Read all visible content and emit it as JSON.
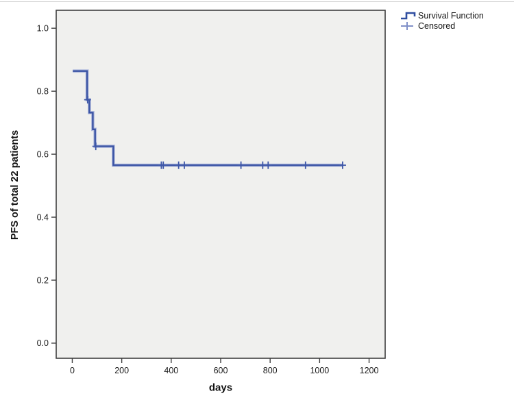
{
  "chart_data": {
    "type": "line",
    "subtype": "kaplan-meier-step",
    "title": "",
    "xlabel": "days",
    "ylabel": "PFS of total 22 patients",
    "xlim": [
      -65,
      1265
    ],
    "ylim": [
      -0.048,
      1.057
    ],
    "x_ticks": [
      0,
      200,
      400,
      600,
      800,
      1000,
      1200
    ],
    "x_tick_labels": [
      "0",
      "200",
      "400",
      "600",
      "800",
      "1000",
      "1200"
    ],
    "y_ticks": [
      0.0,
      0.2,
      0.4,
      0.6,
      0.8,
      1.0
    ],
    "y_tick_labels": [
      "0.0",
      "0.2",
      "0.4",
      "0.6",
      "0.8",
      "1.0"
    ],
    "grid": false,
    "plot_background": "#f0f0ee",
    "plot_border_color": "#3f3f3f",
    "line_color": "#3a53a4",
    "line_halo_color": "#b3bcdd",
    "censor_color": "#3e57a8",
    "legend": {
      "position": "top-right",
      "items": [
        {
          "label": "Survival Function",
          "marker": "step-line",
          "color": "#2f4da0"
        },
        {
          "label": "Censored",
          "marker": "plus",
          "color": "#8090c8"
        }
      ]
    },
    "series": [
      {
        "name": "Survival Function",
        "steps": [
          {
            "t": 2,
            "s": 0.864
          },
          {
            "t": 60,
            "s": 0.773
          },
          {
            "t": 69,
            "s": 0.732
          },
          {
            "t": 83,
            "s": 0.679
          },
          {
            "t": 92,
            "s": 0.625
          },
          {
            "t": 166,
            "s": 0.565
          }
        ],
        "end_t": 1095
      }
    ],
    "censored_points": [
      {
        "t": 62,
        "s": 0.773
      },
      {
        "t": 95,
        "s": 0.625
      },
      {
        "t": 360,
        "s": 0.565
      },
      {
        "t": 368,
        "s": 0.565
      },
      {
        "t": 430,
        "s": 0.565
      },
      {
        "t": 453,
        "s": 0.565
      },
      {
        "t": 682,
        "s": 0.565
      },
      {
        "t": 770,
        "s": 0.565
      },
      {
        "t": 792,
        "s": 0.565
      },
      {
        "t": 943,
        "s": 0.565
      },
      {
        "t": 1093,
        "s": 0.565
      }
    ]
  }
}
